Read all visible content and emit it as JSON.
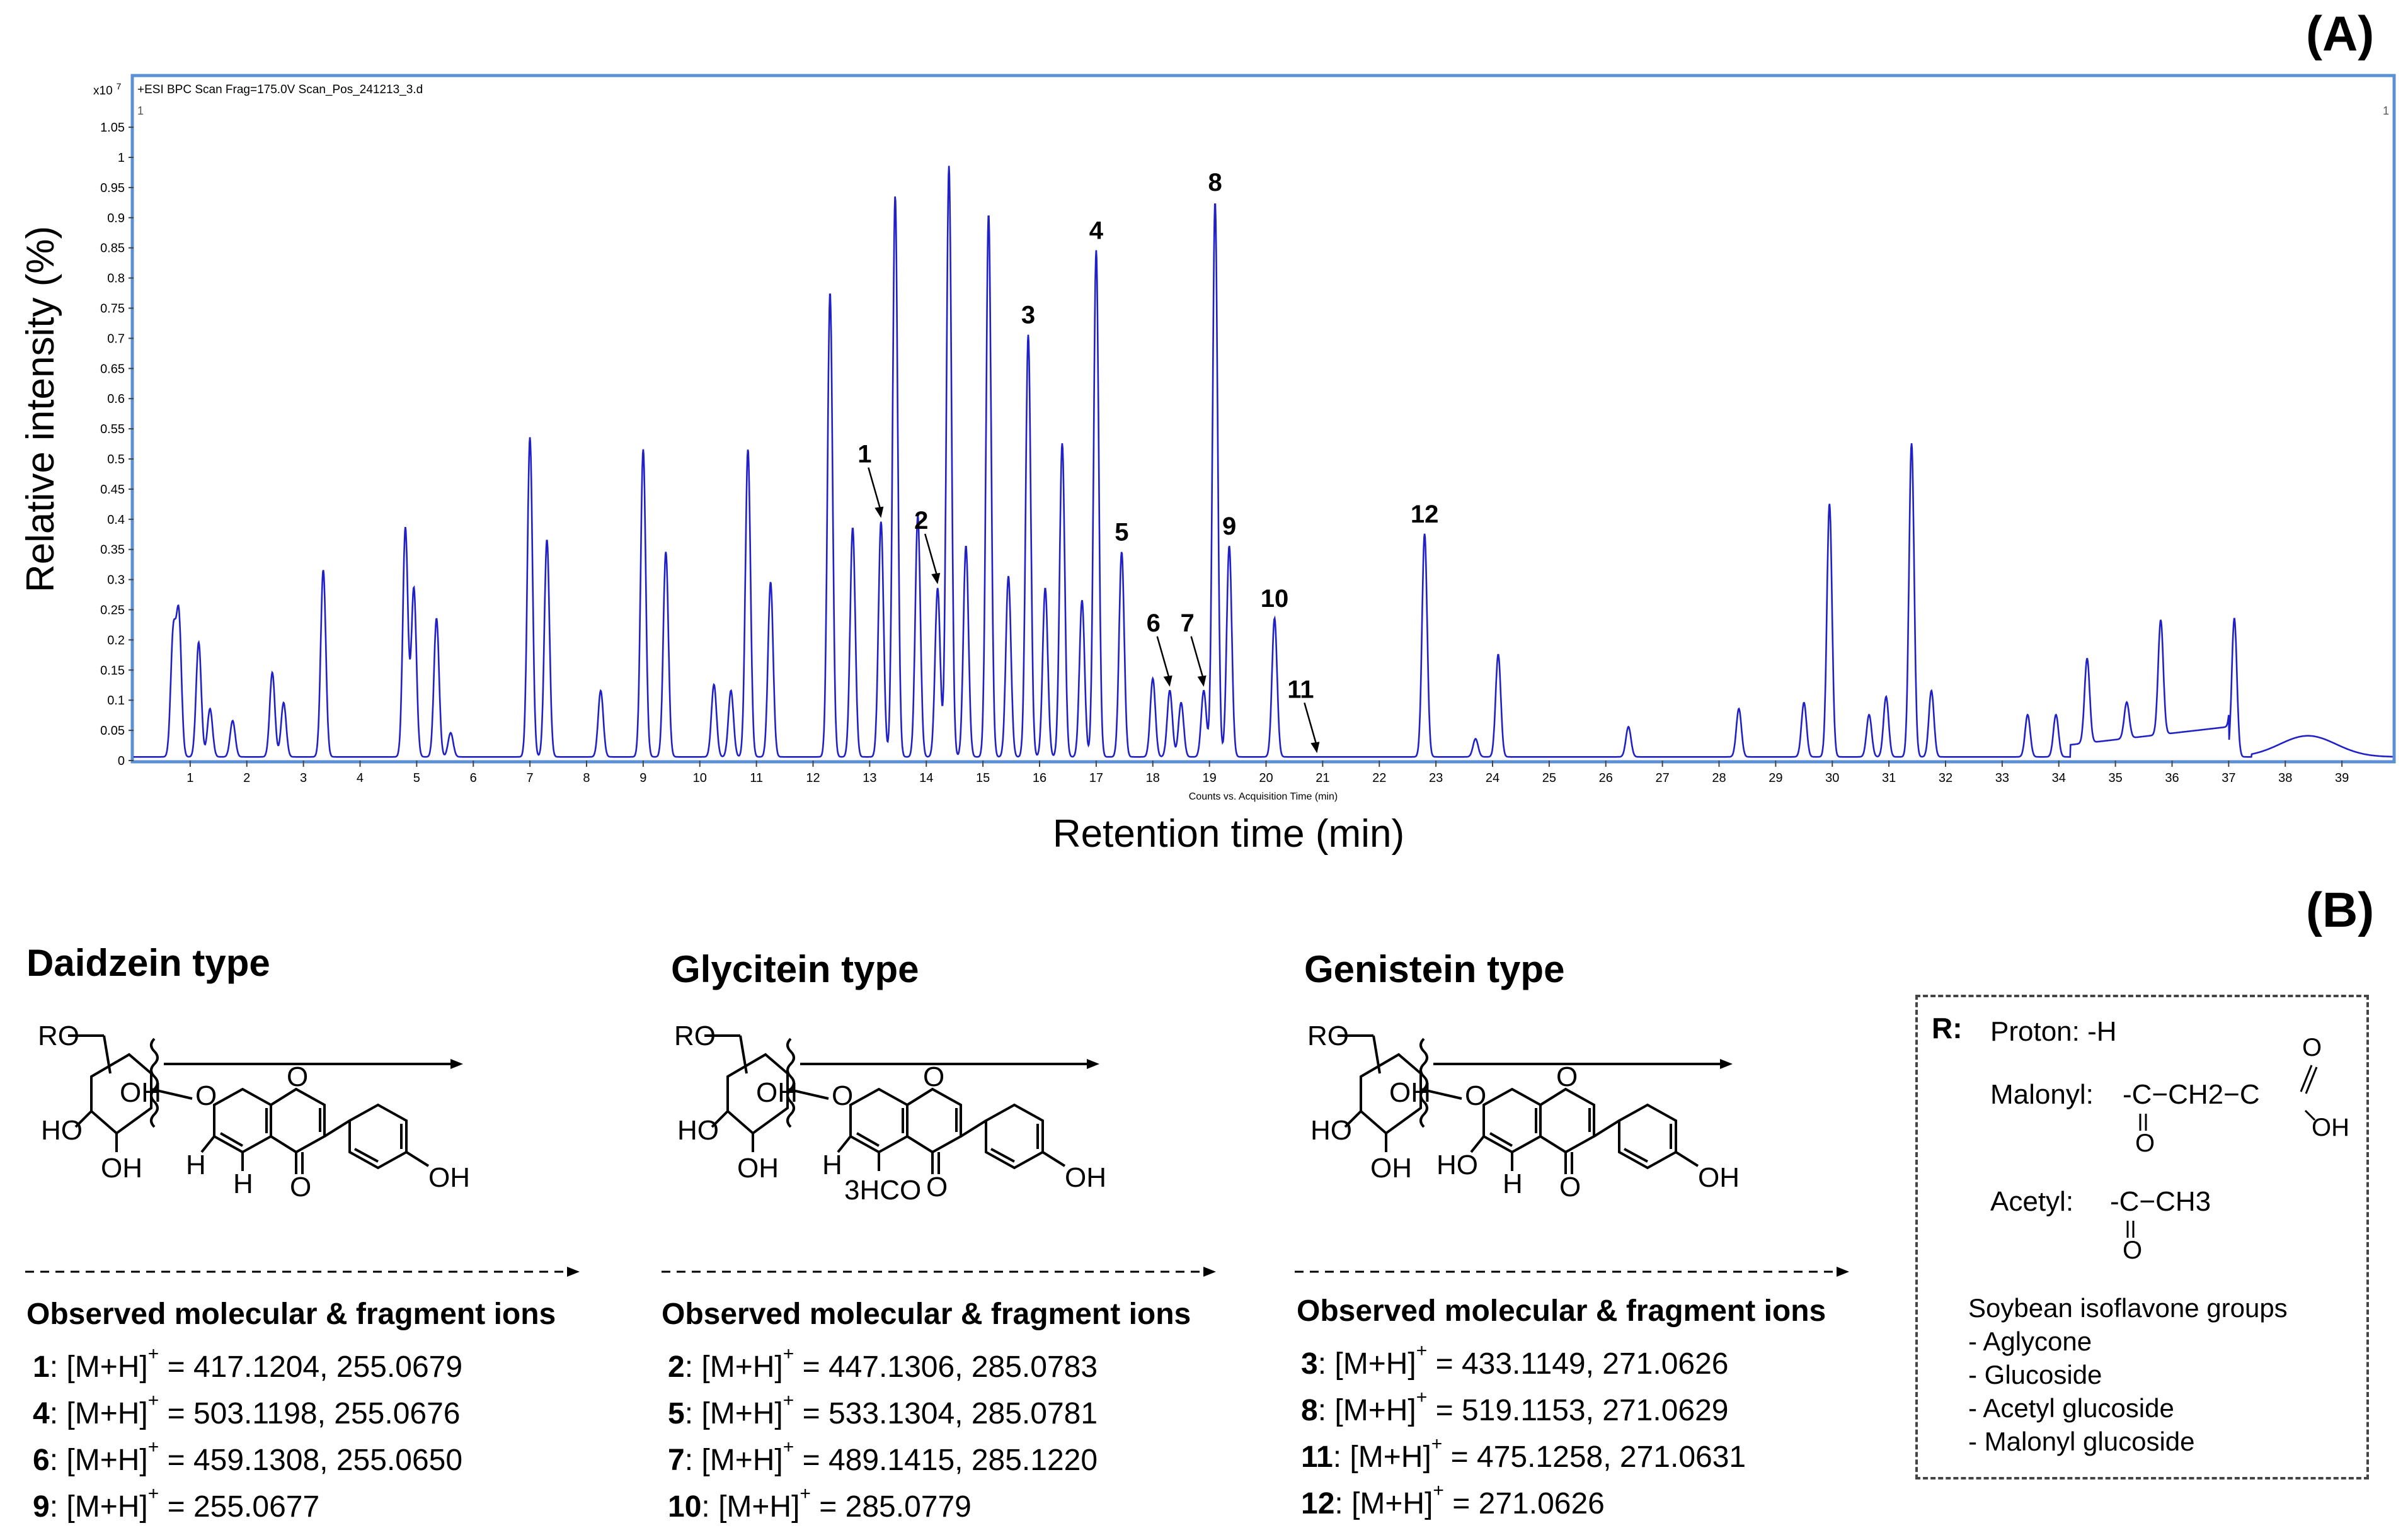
{
  "panels": {
    "a": "(A)",
    "b": "(B)"
  },
  "chart_header": {
    "header_text": "+ESI BPC Scan Frag=175.0V Scan_Pos_241213_3.d",
    "y_multiplier_base": "x10",
    "y_multiplier_exp": "7",
    "corner_left": "1",
    "corner_right": "1",
    "axis_caption": "Counts vs. Acquisition Time (min)"
  },
  "chart_data": {
    "type": "line",
    "xlabel": "Retention time (min)",
    "ylabel": "Relative intensity (%)",
    "xlim": [
      0,
      39.9
    ],
    "ylim": [
      0,
      1.1
    ],
    "x_ticks": [
      1,
      2,
      3,
      4,
      5,
      6,
      7,
      8,
      9,
      10,
      11,
      12,
      13,
      14,
      15,
      16,
      17,
      18,
      19,
      20,
      21,
      22,
      23,
      24,
      25,
      26,
      27,
      28,
      29,
      30,
      31,
      32,
      33,
      34,
      35,
      36,
      37,
      38,
      39
    ],
    "y_ticks": [
      "0",
      "0.05",
      "0.1",
      "0.15",
      "0.2",
      "0.25",
      "0.3",
      "0.35",
      "0.4",
      "0.45",
      "0.5",
      "0.55",
      "0.6",
      "0.65",
      "0.7",
      "0.75",
      "0.8",
      "0.85",
      "0.9",
      "0.95",
      "1",
      "1.05"
    ],
    "series": [
      {
        "color": "#2020c8",
        "peaks": [
          [
            0.7,
            0.2
          ],
          [
            0.8,
            0.23
          ],
          [
            1.15,
            0.19
          ],
          [
            1.35,
            0.08
          ],
          [
            1.75,
            0.06
          ],
          [
            2.45,
            0.14
          ],
          [
            2.65,
            0.09
          ],
          [
            3.35,
            0.31
          ],
          [
            4.8,
            0.38
          ],
          [
            4.95,
            0.28
          ],
          [
            5.35,
            0.23
          ],
          [
            5.6,
            0.04
          ],
          [
            7.0,
            0.53
          ],
          [
            7.3,
            0.36
          ],
          [
            8.25,
            0.11
          ],
          [
            9.0,
            0.51
          ],
          [
            9.4,
            0.34
          ],
          [
            10.25,
            0.12
          ],
          [
            10.55,
            0.11
          ],
          [
            10.85,
            0.51
          ],
          [
            11.25,
            0.29
          ],
          [
            12.3,
            0.77
          ],
          [
            12.7,
            0.38
          ],
          [
            13.2,
            0.39
          ],
          [
            13.45,
            0.93
          ],
          [
            13.85,
            0.4
          ],
          [
            14.2,
            0.28
          ],
          [
            14.4,
            0.98
          ],
          [
            14.7,
            0.35
          ],
          [
            15.1,
            0.9
          ],
          [
            15.45,
            0.3
          ],
          [
            15.8,
            0.7
          ],
          [
            16.1,
            0.28
          ],
          [
            16.4,
            0.52
          ],
          [
            16.75,
            0.26
          ],
          [
            17.0,
            0.84
          ],
          [
            17.45,
            0.34
          ],
          [
            18.0,
            0.13
          ],
          [
            18.3,
            0.11
          ],
          [
            18.5,
            0.09
          ],
          [
            18.9,
            0.11
          ],
          [
            19.1,
            0.92
          ],
          [
            19.35,
            0.35
          ],
          [
            20.15,
            0.23
          ],
          [
            22.8,
            0.37
          ],
          [
            23.7,
            0.03
          ],
          [
            24.1,
            0.17
          ],
          [
            26.4,
            0.05
          ],
          [
            28.35,
            0.08
          ],
          [
            29.5,
            0.09
          ],
          [
            29.95,
            0.42
          ],
          [
            30.65,
            0.07
          ],
          [
            30.95,
            0.1
          ],
          [
            31.4,
            0.52
          ],
          [
            31.75,
            0.11
          ],
          [
            33.45,
            0.07
          ],
          [
            33.95,
            0.07
          ],
          [
            34.5,
            0.14
          ],
          [
            35.2,
            0.06
          ],
          [
            35.8,
            0.19
          ],
          [
            37.1,
            0.23
          ]
        ]
      }
    ],
    "annotations": [
      {
        "label": "1",
        "x": 13.2,
        "arrow": true
      },
      {
        "label": "2",
        "x": 14.2,
        "arrow": true
      },
      {
        "label": "3",
        "x": 15.8,
        "arrow": false
      },
      {
        "label": "4",
        "x": 17.0,
        "arrow": false
      },
      {
        "label": "5",
        "x": 17.45,
        "arrow": false
      },
      {
        "label": "6",
        "x": 18.3,
        "arrow": true
      },
      {
        "label": "7",
        "x": 18.9,
        "arrow": true
      },
      {
        "label": "8",
        "x": 19.1,
        "arrow": false
      },
      {
        "label": "9",
        "x": 19.35,
        "arrow": false
      },
      {
        "label": "10",
        "x": 20.15,
        "arrow": false
      },
      {
        "label": "11",
        "x": 20.9,
        "arrow": true
      },
      {
        "label": "12",
        "x": 22.8,
        "arrow": false
      }
    ]
  },
  "structures": {
    "daidzein": {
      "title": "Daidzein type",
      "labels": {
        "ro": "RO",
        "oh_ring": "OH",
        "ho": "HO",
        "oh_bottom": "OH",
        "ring_o": "O",
        "gly_o": "O",
        "h_left": "H",
        "h_bottom": "H",
        "keto_o": "O",
        "oh_phenyl": "OH"
      }
    },
    "glycitein": {
      "title": "Glycitein type",
      "labels": {
        "ro": "RO",
        "oh_ring": "OH",
        "ho": "HO",
        "oh_bottom": "OH",
        "ring_o": "O",
        "gly_o": "O",
        "h_left": "H",
        "h3co": "3HCO",
        "keto_o": "O",
        "oh_phenyl": "OH"
      }
    },
    "genistein": {
      "title": "Genistein type",
      "labels": {
        "ro": "RO",
        "oh_ring": "OH",
        "ho": "HO",
        "oh_bottom": "OH",
        "ring_o": "O",
        "gly_o": "O",
        "ho_left": "HO",
        "h_bottom": "H",
        "keto_o": "O",
        "oh_phenyl": "OH"
      }
    }
  },
  "observed_title": "Observed molecular & fragment ions",
  "ions": {
    "daidzein": [
      {
        "num": "1",
        "mid": ": [M+H]",
        "sup": "+",
        "val": " = 417.1204, 255.0679"
      },
      {
        "num": "4",
        "mid": ": [M+H]",
        "sup": "+",
        "val": " = 503.1198, 255.0676"
      },
      {
        "num": "6",
        "mid": ": [M+H]",
        "sup": "+",
        "val": " = 459.1308, 255.0650"
      },
      {
        "num": "9",
        "mid": ": [M+H]",
        "sup": "+",
        "val": " = 255.0677"
      }
    ],
    "glycitein": [
      {
        "num": "2",
        "mid": ": [M+H]",
        "sup": "+",
        "val": " = 447.1306, 285.0783"
      },
      {
        "num": "5",
        "mid": ": [M+H]",
        "sup": "+",
        "val": " = 533.1304, 285.0781"
      },
      {
        "num": "7",
        "mid": ": [M+H]",
        "sup": "+",
        "val": " = 489.1415, 285.1220"
      },
      {
        "num": "10",
        "mid": ": [M+H]",
        "sup": "+",
        "val": " = 285.0779"
      }
    ],
    "genistein": [
      {
        "num": "3",
        "mid": ": [M+H]",
        "sup": "+",
        "val": " = 433.1149, 271.0626"
      },
      {
        "num": "8",
        "mid": ": [M+H]",
        "sup": "+",
        "val": " = 519.1153, 271.0629"
      },
      {
        "num": "11",
        "mid": ": [M+H]",
        "sup": "+",
        "val": " = 475.1258, 271.0631"
      },
      {
        "num": "12",
        "mid": ": [M+H]",
        "sup": "+",
        "val": " = 271.0626"
      }
    ]
  },
  "r_box": {
    "heading": "R:",
    "proton": "Proton: -H",
    "malonyl_label": "Malonyl:",
    "malonyl_formula": "-C−CH2−C",
    "malonyl_o1": "O",
    "malonyl_o2": "O",
    "malonyl_oh": "OH",
    "acetyl_label": "Acetyl:",
    "acetyl_formula": "-C−CH3",
    "acetyl_o": "O",
    "groups_title": "Soybean isoflavone groups",
    "groups": [
      "- Aglycone",
      "- Glucoside",
      "- Acetyl glucoside",
      "- Malonyl glucoside"
    ]
  }
}
